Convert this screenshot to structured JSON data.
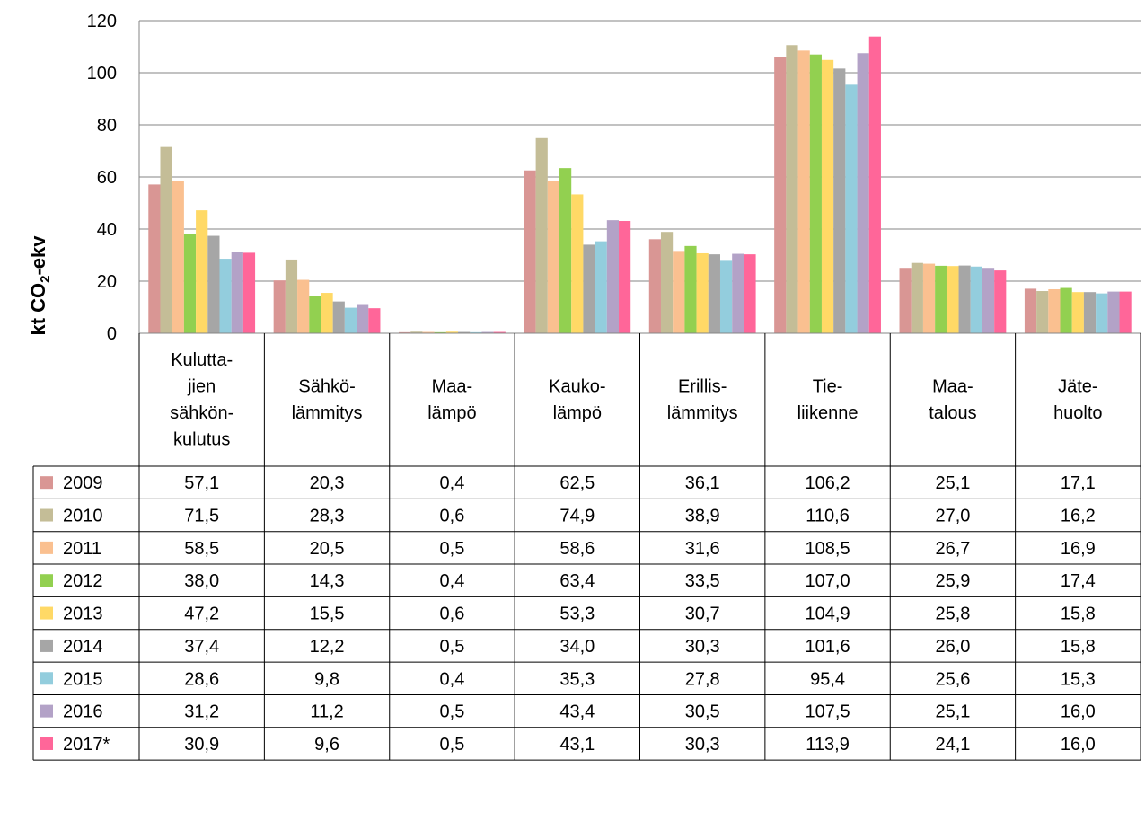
{
  "chart_data": {
    "type": "bar",
    "title": "",
    "xlabel": "",
    "ylabel_main": "kt CO",
    "ylabel_sub": "2",
    "ylabel_tail": "-ekv",
    "ylim": [
      0,
      120
    ],
    "yticks": [
      "0",
      "20",
      "40",
      "60",
      "80",
      "100",
      "120"
    ],
    "grid": "horizontal",
    "legend": "data-table",
    "categories": [
      [
        "Kulutta-",
        "jien",
        "sähkön-",
        "kulutus"
      ],
      [
        "Sähkö-",
        "lämmitys"
      ],
      [
        "Maa-",
        "lämpö"
      ],
      [
        "Kauko-",
        "lämpö"
      ],
      [
        "Erillis-",
        "lämmitys"
      ],
      [
        "Tie-",
        "liikenne"
      ],
      [
        "Maa-",
        "talous"
      ],
      [
        "Jäte-",
        "huolto"
      ]
    ],
    "series": [
      {
        "name": "2009",
        "color": "#d99694",
        "values": [
          57.1,
          20.3,
          0.4,
          62.5,
          36.1,
          106.2,
          25.1,
          17.1
        ],
        "labels": [
          "57,1",
          "20,3",
          "0,4",
          "62,5",
          "36,1",
          "106,2",
          "25,1",
          "17,1"
        ]
      },
      {
        "name": "2010",
        "color": "#c4bd97",
        "values": [
          71.5,
          28.3,
          0.6,
          74.9,
          38.9,
          110.6,
          27.0,
          16.2
        ],
        "labels": [
          "71,5",
          "28,3",
          "0,6",
          "74,9",
          "38,9",
          "110,6",
          "27,0",
          "16,2"
        ]
      },
      {
        "name": "2011",
        "color": "#fac090",
        "values": [
          58.5,
          20.5,
          0.5,
          58.6,
          31.6,
          108.5,
          26.7,
          16.9
        ],
        "labels": [
          "58,5",
          "20,5",
          "0,5",
          "58,6",
          "31,6",
          "108,5",
          "26,7",
          "16,9"
        ]
      },
      {
        "name": "2012",
        "color": "#92d050",
        "values": [
          38.0,
          14.3,
          0.4,
          63.4,
          33.5,
          107.0,
          25.9,
          17.4
        ],
        "labels": [
          "38,0",
          "14,3",
          "0,4",
          "63,4",
          "33,5",
          "107,0",
          "25,9",
          "17,4"
        ]
      },
      {
        "name": "2013",
        "color": "#ffd966",
        "values": [
          47.2,
          15.5,
          0.6,
          53.3,
          30.7,
          104.9,
          25.8,
          15.8
        ],
        "labels": [
          "47,2",
          "15,5",
          "0,6",
          "53,3",
          "30,7",
          "104,9",
          "25,8",
          "15,8"
        ]
      },
      {
        "name": "2014",
        "color": "#a6a6a6",
        "values": [
          37.4,
          12.2,
          0.5,
          34.0,
          30.3,
          101.6,
          26.0,
          15.8
        ],
        "labels": [
          "37,4",
          "12,2",
          "0,5",
          "34,0",
          "30,3",
          "101,6",
          "26,0",
          "15,8"
        ]
      },
      {
        "name": "2015",
        "color": "#93cddd",
        "values": [
          28.6,
          9.8,
          0.4,
          35.3,
          27.8,
          95.4,
          25.6,
          15.3
        ],
        "labels": [
          "28,6",
          "9,8",
          "0,4",
          "35,3",
          "27,8",
          "95,4",
          "25,6",
          "15,3"
        ]
      },
      {
        "name": "2016",
        "color": "#b3a2c7",
        "values": [
          31.2,
          11.2,
          0.5,
          43.4,
          30.5,
          107.5,
          25.1,
          16.0
        ],
        "labels": [
          "31,2",
          "11,2",
          "0,5",
          "43,4",
          "30,5",
          "107,5",
          "25,1",
          "16,0"
        ]
      },
      {
        "name": "2017*",
        "color": "#ff6699",
        "values": [
          30.9,
          9.6,
          0.5,
          43.1,
          30.3,
          113.9,
          24.1,
          16.0
        ],
        "labels": [
          "30,9",
          "9,6",
          "0,5",
          "43,1",
          "30,3",
          "113,9",
          "24,1",
          "16,0"
        ]
      }
    ]
  }
}
